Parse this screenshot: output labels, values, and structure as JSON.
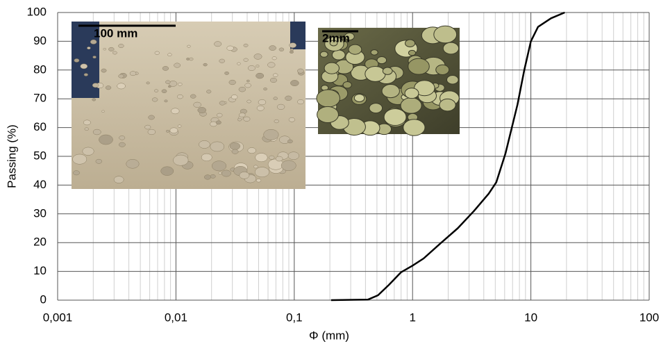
{
  "chart_data": {
    "type": "line",
    "xlabel": "Φ (mm)",
    "ylabel": "Passing (%)",
    "annotations": [
      "100 mm",
      "2mm"
    ],
    "xscale": "log",
    "xlim": [
      0.001,
      100
    ],
    "xticks": [
      {
        "value": 0.001,
        "label": "0,001"
      },
      {
        "value": 0.01,
        "label": "0,01"
      },
      {
        "value": 0.1,
        "label": "0,1"
      },
      1,
      10,
      100
    ],
    "ylim": [
      0,
      100
    ],
    "yticks": [
      0,
      10,
      20,
      30,
      40,
      50,
      60,
      70,
      80,
      90,
      100
    ],
    "grid": true,
    "minor_grid": true,
    "series": [
      {
        "color": "#000000",
        "x": [
          0.205,
          0.42,
          0.51,
          0.63,
          0.8,
          1.0,
          1.24,
          1.75,
          2.41,
          3.3,
          4.4,
          5.1,
          6.1,
          7.7,
          8.8,
          10,
          11.5,
          14.8,
          19.3
        ],
        "values": [
          0,
          0.2,
          1.7,
          5.3,
          9.7,
          12,
          14.5,
          20,
          25,
          31,
          37,
          41,
          51,
          68,
          80,
          90,
          95,
          98,
          100
        ]
      }
    ]
  }
}
